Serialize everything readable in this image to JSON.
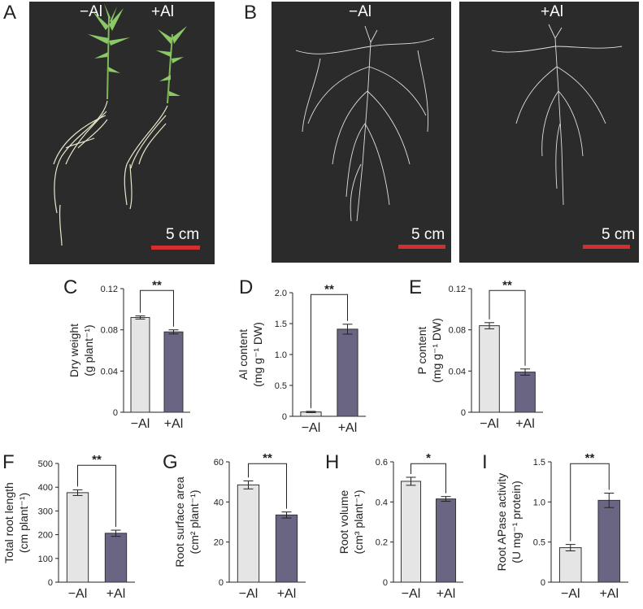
{
  "panels": {
    "A": {
      "letter": "A",
      "label_left": "−Al",
      "label_right": "+Al",
      "scale": "5 cm"
    },
    "B": {
      "letter": "B",
      "label_left": "−Al",
      "label_right": "+Al",
      "scale_left": "5 cm",
      "scale_right": "5 cm"
    }
  },
  "colors": {
    "control_bar": "#e5e5e5",
    "al_bar": "#6b6584",
    "scale_bar": "#d32f2f",
    "photo_bg": "#2b2b2b"
  },
  "chart_data": [
    {
      "id": "C",
      "letter": "C",
      "type": "bar",
      "categories": [
        "−Al",
        "+Al"
      ],
      "values": [
        0.092,
        0.078
      ],
      "errors": [
        0.0015,
        0.002
      ],
      "ylim": [
        0,
        0.12
      ],
      "yticks": [
        "0",
        "0.04",
        "0.08",
        "0.12"
      ],
      "ytick_values": [
        0,
        0.04,
        0.08,
        0.12
      ],
      "ylabel_line1": "Dry weight",
      "ylabel_line2": "(g plant⁻¹)",
      "significance": "**"
    },
    {
      "id": "D",
      "letter": "D",
      "type": "bar",
      "categories": [
        "−Al",
        "+Al"
      ],
      "values": [
        0.07,
        1.41
      ],
      "errors": [
        0.01,
        0.08
      ],
      "ylim": [
        0,
        2.0
      ],
      "yticks": [
        "0",
        "0.5",
        "1.0",
        "1.5",
        "2.0"
      ],
      "ytick_values": [
        0,
        0.5,
        1.0,
        1.5,
        2.0
      ],
      "ylabel_line1": "Al content",
      "ylabel_line2": "(mg g⁻¹ DW)",
      "significance": "**"
    },
    {
      "id": "E",
      "letter": "E",
      "type": "bar",
      "categories": [
        "−Al",
        "+Al"
      ],
      "values": [
        0.084,
        0.039
      ],
      "errors": [
        0.003,
        0.003
      ],
      "ylim": [
        0,
        0.12
      ],
      "yticks": [
        "0",
        "0.04",
        "0.08",
        "0.12"
      ],
      "ytick_values": [
        0,
        0.04,
        0.08,
        0.12
      ],
      "ylabel_line1": "P content",
      "ylabel_line2": "(mg g⁻¹ DW)",
      "significance": "**"
    },
    {
      "id": "F",
      "letter": "F",
      "type": "bar",
      "categories": [
        "−Al",
        "+Al"
      ],
      "values": [
        377,
        206
      ],
      "errors": [
        12,
        13
      ],
      "ylim": [
        0,
        500
      ],
      "yticks": [
        "0",
        "100",
        "200",
        "300",
        "400",
        "500"
      ],
      "ytick_values": [
        0,
        100,
        200,
        300,
        400,
        500
      ],
      "ylabel_line1": "Total root length",
      "ylabel_line2": "(cm plant⁻¹)",
      "significance": "**"
    },
    {
      "id": "G",
      "letter": "G",
      "type": "bar",
      "categories": [
        "−Al",
        "+Al"
      ],
      "values": [
        48.5,
        33.5
      ],
      "errors": [
        2.0,
        1.5
      ],
      "ylim": [
        0,
        60
      ],
      "yticks": [
        "0",
        "20",
        "40",
        "60"
      ],
      "ytick_values": [
        0,
        20,
        40,
        60
      ],
      "ylabel_line1": "Root surface area",
      "ylabel_line2": "(cm² plant⁻¹)",
      "significance": "**"
    },
    {
      "id": "H",
      "letter": "H",
      "type": "bar",
      "categories": [
        "−Al",
        "+Al"
      ],
      "values": [
        0.503,
        0.415
      ],
      "errors": [
        0.02,
        0.012
      ],
      "ylim": [
        0,
        0.6
      ],
      "yticks": [
        "0",
        "0.2",
        "0.4",
        "0.6"
      ],
      "ytick_values": [
        0,
        0.2,
        0.4,
        0.6
      ],
      "ylabel_line1": "Root volume",
      "ylabel_line2": "(cm³ plant⁻¹)",
      "significance": "*"
    },
    {
      "id": "I",
      "letter": "I",
      "type": "bar",
      "categories": [
        "−Al",
        "+Al"
      ],
      "values": [
        0.43,
        1.02
      ],
      "errors": [
        0.04,
        0.09
      ],
      "ylim": [
        0,
        1.5
      ],
      "yticks": [
        "0",
        "0.5",
        "1.0",
        "1.5"
      ],
      "ytick_values": [
        0,
        0.5,
        1.0,
        1.5
      ],
      "ylabel_line1": "Root APase activity",
      "ylabel_line2": "(U mg⁻¹ protein)",
      "significance": "**"
    }
  ]
}
